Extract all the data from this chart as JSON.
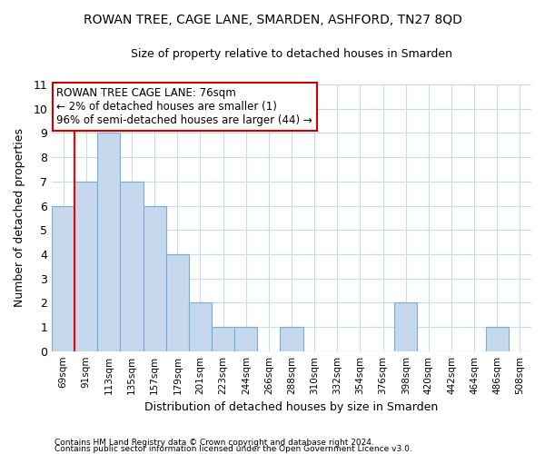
{
  "title": "ROWAN TREE, CAGE LANE, SMARDEN, ASHFORD, TN27 8QD",
  "subtitle": "Size of property relative to detached houses in Smarden",
  "xlabel": "Distribution of detached houses by size in Smarden",
  "ylabel": "Number of detached properties",
  "bin_labels": [
    "69sqm",
    "91sqm",
    "113sqm",
    "135sqm",
    "157sqm",
    "179sqm",
    "201sqm",
    "223sqm",
    "244sqm",
    "266sqm",
    "288sqm",
    "310sqm",
    "332sqm",
    "354sqm",
    "376sqm",
    "398sqm",
    "420sqm",
    "442sqm",
    "464sqm",
    "486sqm",
    "508sqm"
  ],
  "bar_values": [
    6,
    7,
    9,
    7,
    6,
    4,
    2,
    1,
    1,
    0,
    1,
    0,
    0,
    0,
    0,
    2,
    0,
    0,
    0,
    1,
    0
  ],
  "bar_color": "#c5d8ee",
  "bar_edge_color": "#7aadd4",
  "annotation_title": "ROWAN TREE CAGE LANE: 76sqm",
  "annotation_line1": "← 2% of detached houses are smaller (1)",
  "annotation_line2": "96% of semi-detached houses are larger (44) →",
  "ylim": [
    0,
    11
  ],
  "yticks": [
    0,
    1,
    2,
    3,
    4,
    5,
    6,
    7,
    8,
    9,
    10
  ],
  "footnote1": "Contains HM Land Registry data © Crown copyright and database right 2024.",
  "footnote2": "Contains public sector information licensed under the Open Government Licence v3.0.",
  "bg_color": "#ffffff",
  "grid_color": "#c8daf0",
  "red_line_x": 0.5,
  "annotation_border_color": "#cc0000"
}
